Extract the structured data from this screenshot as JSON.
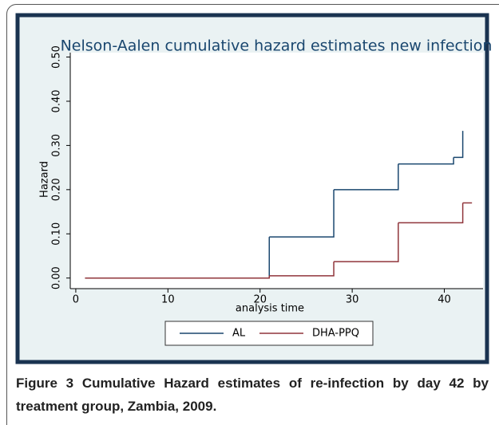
{
  "chart_data": {
    "type": "step",
    "title": "Nelson-Aalen cumulative hazard estimates new infection",
    "x_label": "analysis time",
    "y_label": "Hazard",
    "xlim": [
      -0.6,
      44.2
    ],
    "ylim": [
      -0.024,
      0.51
    ],
    "xticks": [
      0,
      10,
      20,
      30,
      40
    ],
    "yticks": [
      {
        "value": 0,
        "label": "0.00"
      },
      {
        "value": 0.1,
        "label": "0.10"
      },
      {
        "value": 0.2,
        "label": "0.20"
      },
      {
        "value": 0.3,
        "label": "0.30"
      },
      {
        "value": 0.4,
        "label": "0.40"
      },
      {
        "value": 0.5,
        "label": "0.50"
      }
    ],
    "legend": "bottom",
    "series": [
      {
        "name": "AL",
        "color": "#1a476f",
        "x": [
          1,
          21,
          28,
          35,
          41,
          42
        ],
        "values": [
          0,
          0.093,
          0.2,
          0.258,
          0.273,
          0.333
        ]
      },
      {
        "name": "DHA-PPQ",
        "color": "#90353b",
        "x": [
          1,
          21,
          28,
          35,
          42,
          43
        ],
        "values": [
          0,
          0.005,
          0.037,
          0.125,
          0.17,
          0.17
        ]
      }
    ]
  },
  "caption": {
    "label": "Figure 3",
    "text": "Cumulative Hazard estimates of re-infection by day 42 by treatment group, Zambia, 2009."
  }
}
